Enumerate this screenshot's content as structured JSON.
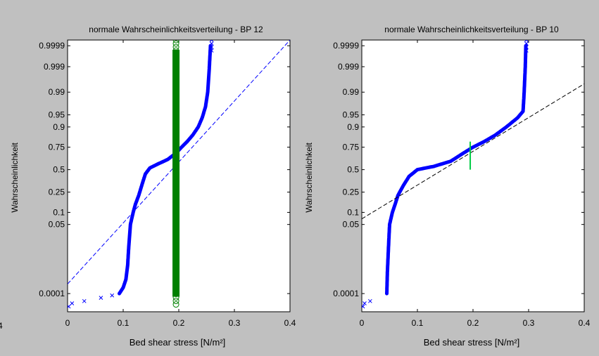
{
  "chart_data": [
    {
      "type": "scatter",
      "title": "normale Wahrscheinlichkeitsverteilung - BP 12",
      "xlabel": "Bed shear stress  [N/m²]",
      "ylabel": "Wahrscheinlichkeit",
      "xlim": [
        0,
        0.4
      ],
      "y_scale": "normal-probability",
      "x_ticks": [
        {
          "value": 0,
          "label": "0"
        },
        {
          "value": 0.1,
          "label": "0.1"
        },
        {
          "value": 0.2,
          "label": "0.2"
        },
        {
          "value": 0.3,
          "label": "0.3"
        },
        {
          "value": 0.4,
          "label": "0.4"
        }
      ],
      "y_ticks": [
        {
          "value": 0.9999,
          "label": "0.9999"
        },
        {
          "value": 0.999,
          "label": "0.999"
        },
        {
          "value": 0.99,
          "label": "0.99"
        },
        {
          "value": 0.95,
          "label": "0.95"
        },
        {
          "value": 0.9,
          "label": "0.9"
        },
        {
          "value": 0.75,
          "label": "0.75"
        },
        {
          "value": 0.5,
          "label": "0.5"
        },
        {
          "value": 0.25,
          "label": "0.25"
        },
        {
          "value": 0.1,
          "label": "0.1"
        },
        {
          "value": 0.05,
          "label": "0.05"
        },
        {
          "value": 0.0001,
          "label": "0.0001"
        }
      ],
      "grid": false,
      "series": [
        {
          "kind": "cdf-markers",
          "color": "#0000ff",
          "points": [
            [
              0.002,
              2e-05
            ],
            [
              0.008,
              3e-05
            ],
            [
              0.03,
              4e-05
            ],
            [
              0.06,
              6e-05
            ],
            [
              0.08,
              8e-05
            ],
            [
              0.093,
              0.0001
            ],
            [
              0.1,
              0.0002
            ],
            [
              0.105,
              0.0005
            ],
            [
              0.108,
              0.002
            ],
            [
              0.11,
              0.01
            ],
            [
              0.113,
              0.05
            ],
            [
              0.118,
              0.1
            ],
            [
              0.122,
              0.15
            ],
            [
              0.128,
              0.22
            ],
            [
              0.135,
              0.35
            ],
            [
              0.14,
              0.45
            ],
            [
              0.148,
              0.52
            ],
            [
              0.16,
              0.56
            ],
            [
              0.18,
              0.62
            ],
            [
              0.195,
              0.69
            ],
            [
              0.205,
              0.75
            ],
            [
              0.215,
              0.8
            ],
            [
              0.225,
              0.85
            ],
            [
              0.235,
              0.9
            ],
            [
              0.242,
              0.94
            ],
            [
              0.248,
              0.97
            ],
            [
              0.252,
              0.99
            ],
            [
              0.255,
              0.999
            ],
            [
              0.257,
              0.9999
            ],
            [
              0.259,
              0.99995
            ]
          ]
        },
        {
          "kind": "reference-line",
          "color": "#0000ff",
          "points": [
            [
              0,
              0.0003
            ],
            [
              0.4,
              0.99995
            ]
          ]
        },
        {
          "kind": "circles",
          "color": "#008000",
          "x": 0.195,
          "y_range": [
            2e-05,
            0.99995
          ]
        }
      ]
    },
    {
      "type": "scatter",
      "title": "normale Wahrscheinlichkeitsverteilung - BP 10",
      "xlabel": "Bed shear stress  [N/m²]",
      "ylabel": "Wahrscheinlichkeit",
      "xlim": [
        0,
        0.4
      ],
      "y_scale": "normal-probability",
      "x_ticks": [
        {
          "value": 0,
          "label": "0"
        },
        {
          "value": 0.1,
          "label": "0.1"
        },
        {
          "value": 0.2,
          "label": "0.2"
        },
        {
          "value": 0.3,
          "label": "0.3"
        },
        {
          "value": 0.4,
          "label": "0.4"
        }
      ],
      "y_ticks": [
        {
          "value": 0.9999,
          "label": "0.9999"
        },
        {
          "value": 0.999,
          "label": "0.999"
        },
        {
          "value": 0.99,
          "label": "0.99"
        },
        {
          "value": 0.95,
          "label": "0.95"
        },
        {
          "value": 0.9,
          "label": "0.9"
        },
        {
          "value": 0.75,
          "label": "0.75"
        },
        {
          "value": 0.5,
          "label": "0.5"
        },
        {
          "value": 0.25,
          "label": "0.25"
        },
        {
          "value": 0.1,
          "label": "0.1"
        },
        {
          "value": 0.05,
          "label": "0.05"
        },
        {
          "value": 0.0001,
          "label": "0.0001"
        }
      ],
      "grid": false,
      "series": [
        {
          "kind": "cdf-markers",
          "color": "#0000ff",
          "points": [
            [
              0.002,
              2e-05
            ],
            [
              0.005,
              3e-05
            ],
            [
              0.015,
              4e-05
            ],
            [
              0.045,
              0.0001
            ],
            [
              0.046,
              0.001
            ],
            [
              0.048,
              0.01
            ],
            [
              0.05,
              0.05
            ],
            [
              0.055,
              0.1
            ],
            [
              0.06,
              0.15
            ],
            [
              0.065,
              0.22
            ],
            [
              0.075,
              0.32
            ],
            [
              0.085,
              0.42
            ],
            [
              0.1,
              0.5
            ],
            [
              0.13,
              0.54
            ],
            [
              0.16,
              0.6
            ],
            [
              0.18,
              0.68
            ],
            [
              0.2,
              0.75
            ],
            [
              0.22,
              0.8
            ],
            [
              0.24,
              0.85
            ],
            [
              0.26,
              0.9
            ],
            [
              0.28,
              0.94
            ],
            [
              0.29,
              0.96
            ],
            [
              0.292,
              0.99
            ],
            [
              0.294,
              0.999
            ],
            [
              0.295,
              0.9999
            ],
            [
              0.296,
              0.99995
            ]
          ]
        },
        {
          "kind": "reference-line",
          "color": "#000000",
          "points": [
            [
              0,
              0.07
            ],
            [
              0.4,
              0.995
            ]
          ]
        },
        {
          "kind": "marker-line",
          "color": "#00cc44",
          "points": [
            [
              0.195,
              0.5
            ],
            [
              0.195,
              0.8
            ]
          ]
        }
      ]
    }
  ],
  "stray_labels": [
    {
      "label": "4"
    }
  ]
}
